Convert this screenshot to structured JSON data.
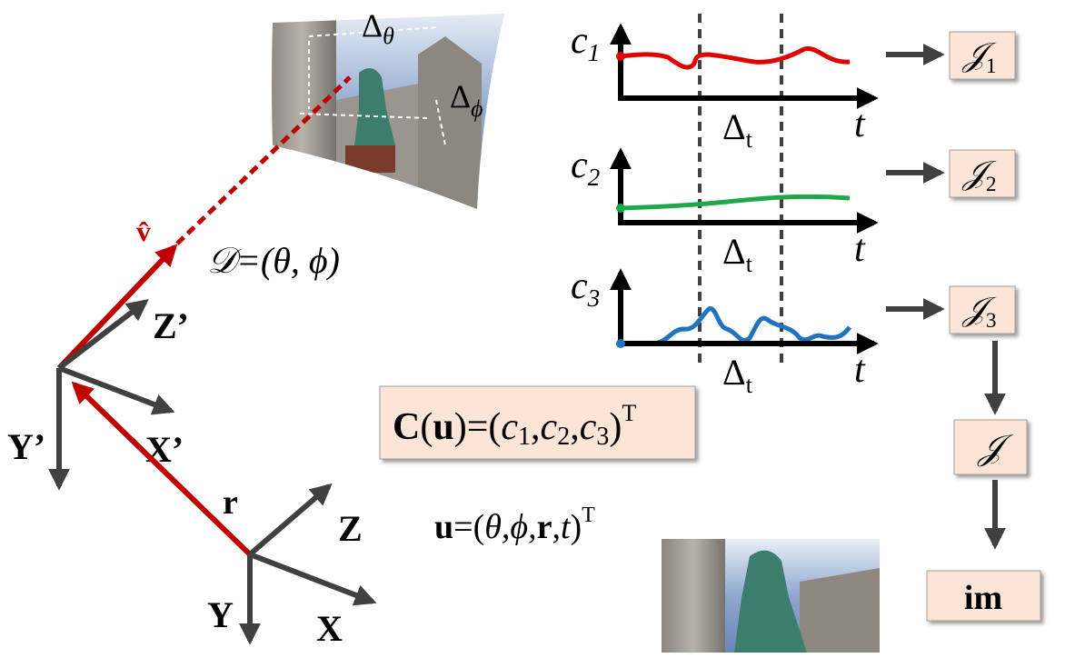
{
  "view_labels": {
    "delta_theta": {
      "base": "Δ",
      "sub": "θ"
    },
    "delta_phi": {
      "base": "Δ",
      "sub": "ϕ"
    }
  },
  "view_vector": "v̂",
  "direction": "𝒟=(θ, ϕ)",
  "frames": {
    "local": {
      "z": "Z’",
      "x": "X’",
      "y": "Y’"
    },
    "world": {
      "z": "Z",
      "x": "X",
      "y": "Y"
    },
    "offset": "r"
  },
  "color_formula": [
    "C",
    "(",
    "u",
    ")=(",
    "c",
    "1",
    ",",
    "c",
    "2",
    ",",
    "c",
    "3",
    ")",
    "T"
  ],
  "coord_formula": [
    "u",
    "=(",
    "θ,ϕ,",
    "r",
    ",",
    "t",
    ")",
    "T"
  ],
  "channels": [
    {
      "name": {
        "base": "c",
        "sub": "1"
      },
      "axis": "t",
      "window": {
        "base": "Δ",
        "sub": "t"
      },
      "output": {
        "base": "𝒥",
        "sub": "1"
      }
    },
    {
      "name": {
        "base": "c",
        "sub": "2"
      },
      "axis": "t",
      "window": {
        "base": "Δ",
        "sub": "t"
      },
      "output": {
        "base": "𝒥",
        "sub": "2"
      }
    },
    {
      "name": {
        "base": "c",
        "sub": "3"
      },
      "axis": "t",
      "window": {
        "base": "Δ",
        "sub": "t"
      },
      "output": {
        "base": "𝒥",
        "sub": "3"
      }
    }
  ],
  "combined": "𝒥",
  "result": "im"
}
